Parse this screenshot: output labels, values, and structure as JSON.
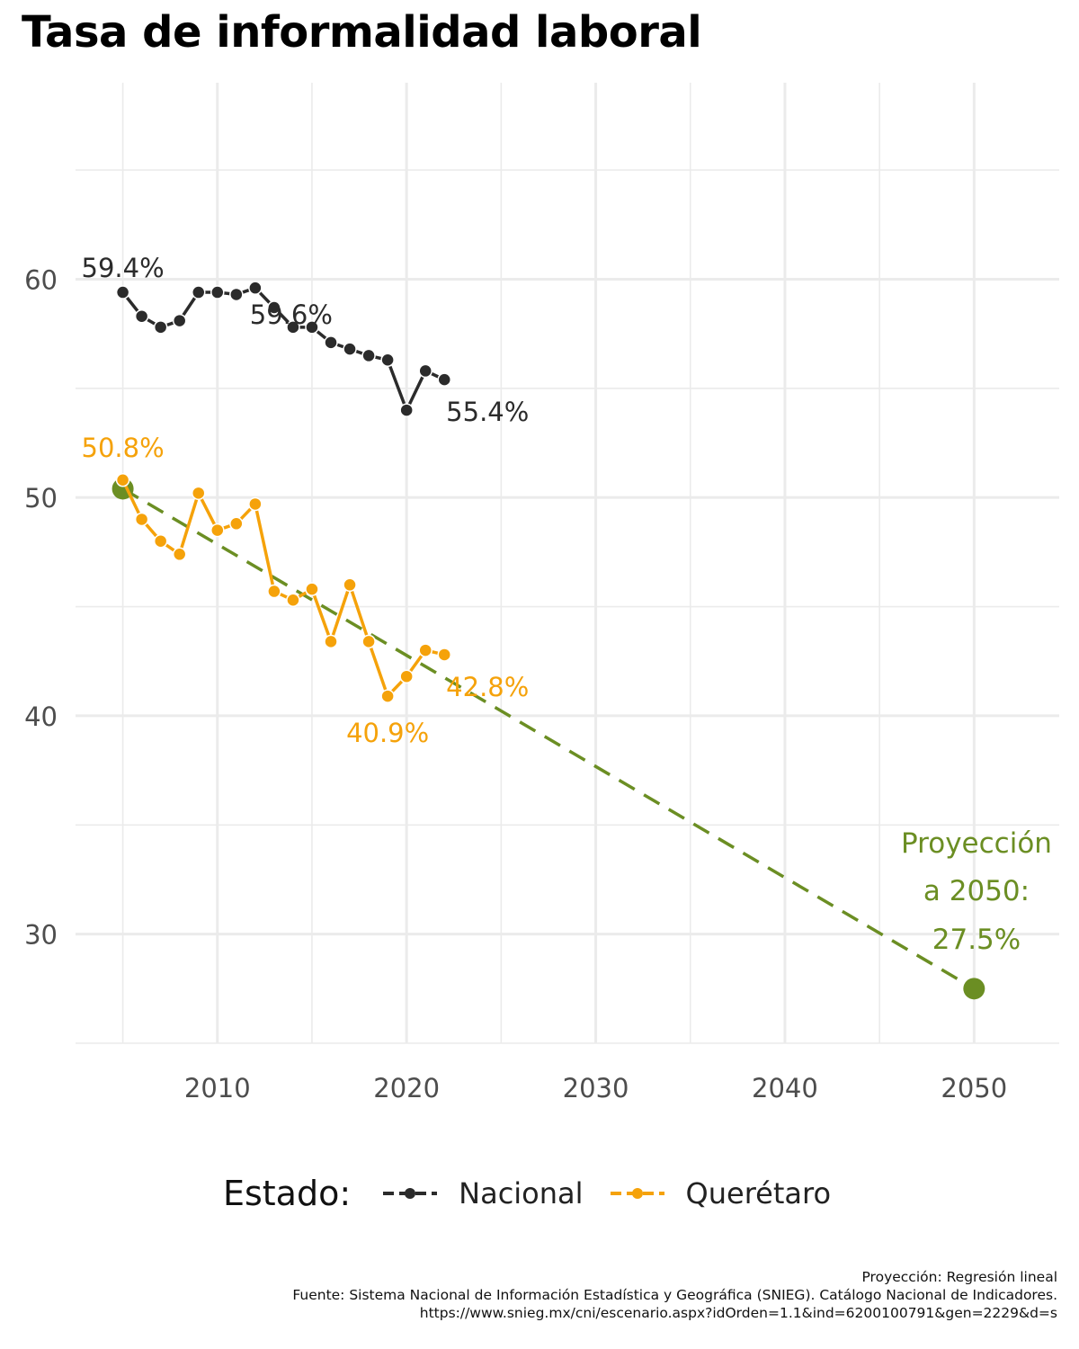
{
  "chart_data": {
    "type": "line",
    "title": "Tasa de informalidad laboral",
    "xlabel": "",
    "ylabel": "",
    "xlim": [
      2002.5,
      2054.5
    ],
    "ylim": [
      25,
      69
    ],
    "x_ticks": [
      2010,
      2020,
      2030,
      2040,
      2050
    ],
    "y_ticks": [
      30,
      40,
      50,
      60
    ],
    "grid": true,
    "legend_position": "bottom",
    "legend_title": "Estado:",
    "colors": {
      "nacional": "#2b2b2b",
      "queretaro": "#f5a20a",
      "projection": "#6b8e23"
    },
    "series": [
      {
        "name": "Nacional",
        "x": [
          2005,
          2006,
          2007,
          2008,
          2009,
          2010,
          2011,
          2012,
          2013,
          2014,
          2015,
          2016,
          2017,
          2018,
          2019,
          2020,
          2021,
          2022
        ],
        "y": [
          59.4,
          58.3,
          57.8,
          58.1,
          59.4,
          59.4,
          59.3,
          59.6,
          58.7,
          57.8,
          57.8,
          57.1,
          56.8,
          56.5,
          56.3,
          54.0,
          55.8,
          55.4
        ]
      },
      {
        "name": "Querétaro",
        "x": [
          2005,
          2006,
          2007,
          2008,
          2009,
          2010,
          2011,
          2012,
          2013,
          2014,
          2015,
          2016,
          2017,
          2018,
          2019,
          2020,
          2021,
          2022
        ],
        "y": [
          50.8,
          49.0,
          48.0,
          47.4,
          50.2,
          48.5,
          48.8,
          49.7,
          45.7,
          45.3,
          45.8,
          43.4,
          46.0,
          43.4,
          40.9,
          41.8,
          43.0,
          42.8
        ]
      }
    ],
    "projection": {
      "x": [
        2005,
        2050
      ],
      "y": [
        50.4,
        27.5
      ]
    },
    "annotations": [
      {
        "series": "Nacional",
        "x": 2005,
        "y": 59.4,
        "text": "59.4%"
      },
      {
        "series": "Nacional",
        "x": 2012,
        "y": 59.6,
        "text": "59.6%"
      },
      {
        "series": "Nacional",
        "x": 2022,
        "y": 55.4,
        "text": "55.4%"
      },
      {
        "series": "Querétaro",
        "x": 2005,
        "y": 50.8,
        "text": "50.8%"
      },
      {
        "series": "Querétaro",
        "x": 2022,
        "y": 42.8,
        "text": "42.8%"
      },
      {
        "series": "Querétaro",
        "x": 2019,
        "y": 40.9,
        "text": "40.9%"
      }
    ],
    "projection_label": [
      "Proyección",
      "a 2050:",
      "27.5%"
    ]
  },
  "caption": {
    "line1": "Proyección: Regresión lineal",
    "line2": "Fuente: Sistema Nacional de Información Estadística y Geográfica (SNIEG). Catálogo Nacional de Indicadores.",
    "line3": "https://www.snieg.mx/cni/escenario.aspx?idOrden=1.1&ind=6200100791&gen=2229&d=s"
  }
}
